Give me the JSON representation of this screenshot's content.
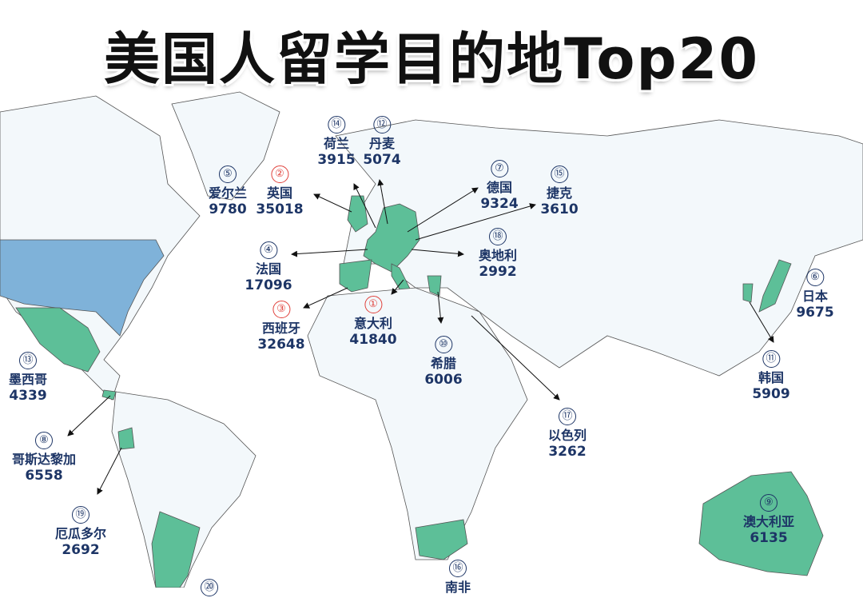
{
  "title": "美国人留学目的地Top20",
  "colors": {
    "highlight": "#5dbf98",
    "usa": "#7fb2d9",
    "land": "#f3f8fb",
    "text": "#1d3566",
    "top3": "#e0413b"
  },
  "destinations": [
    {
      "rank": "①",
      "name": "意大利",
      "count": "41840"
    },
    {
      "rank": "②",
      "name": "英国",
      "count": "35018"
    },
    {
      "rank": "③",
      "name": "西班牙",
      "count": "32648"
    },
    {
      "rank": "④",
      "name": "法国",
      "count": "17096"
    },
    {
      "rank": "⑤",
      "name": "爱尔兰",
      "count": "9780"
    },
    {
      "rank": "⑥",
      "name": "日本",
      "count": "9675"
    },
    {
      "rank": "⑦",
      "name": "德国",
      "count": "9324"
    },
    {
      "rank": "⑧",
      "name": "哥斯达黎加",
      "count": "6558"
    },
    {
      "rank": "⑨",
      "name": "澳大利亚",
      "count": "6135"
    },
    {
      "rank": "⑩",
      "name": "希腊",
      "count": "6006"
    },
    {
      "rank": "⑪",
      "name": "韩国",
      "count": "5909"
    },
    {
      "rank": "⑫",
      "name": "丹麦",
      "count": "5074"
    },
    {
      "rank": "⑬",
      "name": "墨西哥",
      "count": "4339"
    },
    {
      "rank": "⑭",
      "name": "荷兰",
      "count": "3915"
    },
    {
      "rank": "⑮",
      "name": "捷克",
      "count": "3610"
    },
    {
      "rank": "⑯",
      "name": "南非"
    },
    {
      "rank": "⑰",
      "name": "以色列",
      "count": "3262"
    },
    {
      "rank": "⑱",
      "name": "奥地利",
      "count": "2992"
    },
    {
      "rank": "⑲",
      "name": "厄瓜多尔",
      "count": "2692"
    },
    {
      "rank": "⑳"
    }
  ]
}
